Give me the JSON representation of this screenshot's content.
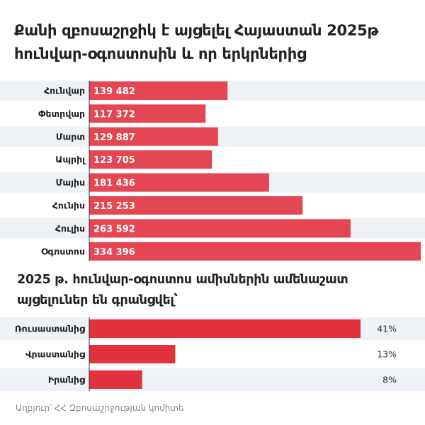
{
  "chart_data": [
    {
      "type": "bar",
      "orientation": "horizontal",
      "title": "Քանի զբոսաշրջիկ է այցելել Հայաստան 2025թ հունվար-օգոստոսին և որ երկրներից",
      "categories": [
        "Հունվար",
        "Փետրվար",
        "Մարտ",
        "Ապրիլ",
        "Մայիս",
        "Հունիս",
        "Հուլիս",
        "Օգոստոս"
      ],
      "values": [
        139482,
        117372,
        129887,
        123705,
        181436,
        215253,
        263592,
        334396
      ],
      "value_labels": [
        "139 482",
        "117 372",
        "129 887",
        "123 705",
        "181 436",
        "215 253",
        "263 592",
        "334 396"
      ],
      "bar_color": "#e44654",
      "stripe_color": "#eef1f5"
    },
    {
      "type": "bar",
      "orientation": "horizontal",
      "title": "2025 թ. հունվար-օգոստոս ամիսներին ամենաշատ այցելուներ են գրանցվել՝",
      "categories": [
        "Ռուսաստանից",
        "Վրաստանից",
        "Իրանից"
      ],
      "values": [
        41,
        13,
        8
      ],
      "value_labels": [
        "41%",
        "13%",
        "8%"
      ],
      "bar_color": "#e2323e",
      "stripe_color": "#eef1f5"
    }
  ],
  "source": "Աղբյուր՝ ՀՀ Զբոսաշրջության կոմիտե"
}
